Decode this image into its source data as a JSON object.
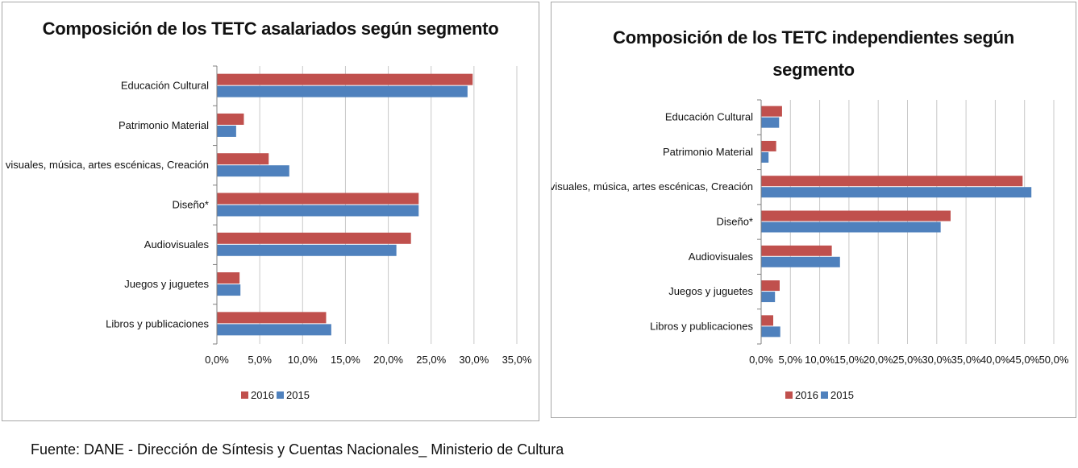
{
  "colors": {
    "series2016": "#c0504d",
    "series2015": "#4f81bd",
    "grid": "#c8c8c8",
    "axis": "#808080"
  },
  "chart_data": [
    {
      "type": "bar",
      "orientation": "horizontal",
      "title": "Composición de los TETC asalariados según segmento",
      "categories": [
        "Educación Cultural",
        "Patrimonio Material",
        "Artes visuales, música, artes escénicas, Creación",
        "Diseño*",
        "Audiovisuales",
        "Juegos y juguetes",
        "Libros y publicaciones"
      ],
      "series": [
        {
          "name": "2016",
          "color": "#c0504d",
          "values": [
            29.8,
            3.1,
            6.0,
            23.5,
            22.6,
            2.6,
            12.7
          ]
        },
        {
          "name": "2015",
          "color": "#4f81bd",
          "values": [
            29.2,
            2.2,
            8.4,
            23.5,
            20.9,
            2.7,
            13.3
          ]
        }
      ],
      "xlim": [
        0,
        35
      ],
      "xticks": [
        "0,0%",
        "5,0%",
        "10,0%",
        "15,0%",
        "20,0%",
        "25,0%",
        "30,0%",
        "35,0%"
      ],
      "grid": true,
      "legend_position": "bottom"
    },
    {
      "type": "bar",
      "orientation": "horizontal",
      "title": "Composición de los TETC independientes según segmento",
      "categories": [
        "Educación Cultural",
        "Patrimonio Material",
        "Artes visuales, música, artes escénicas, Creación",
        "Diseño*",
        "Audiovisuales",
        "Juegos y juguetes",
        "Libros y publicaciones"
      ],
      "series": [
        {
          "name": "2016",
          "color": "#c0504d",
          "values": [
            3.5,
            2.5,
            44.6,
            32.3,
            12.0,
            3.1,
            2.0
          ]
        },
        {
          "name": "2015",
          "color": "#4f81bd",
          "values": [
            3.0,
            1.2,
            46.1,
            30.6,
            13.4,
            2.3,
            3.2
          ]
        }
      ],
      "xlim": [
        0,
        50
      ],
      "xticks": [
        "0,0%",
        "5,0%",
        "10,0%",
        "15,0%",
        "20,0%",
        "25,0%",
        "30,0%",
        "35,0%",
        "40,0%",
        "45,0%",
        "50,0%"
      ],
      "grid": true,
      "legend_position": "bottom"
    }
  ],
  "source": "Fuente: DANE - Dirección de Síntesis y Cuentas Nacionales_ Ministerio de Cultura"
}
